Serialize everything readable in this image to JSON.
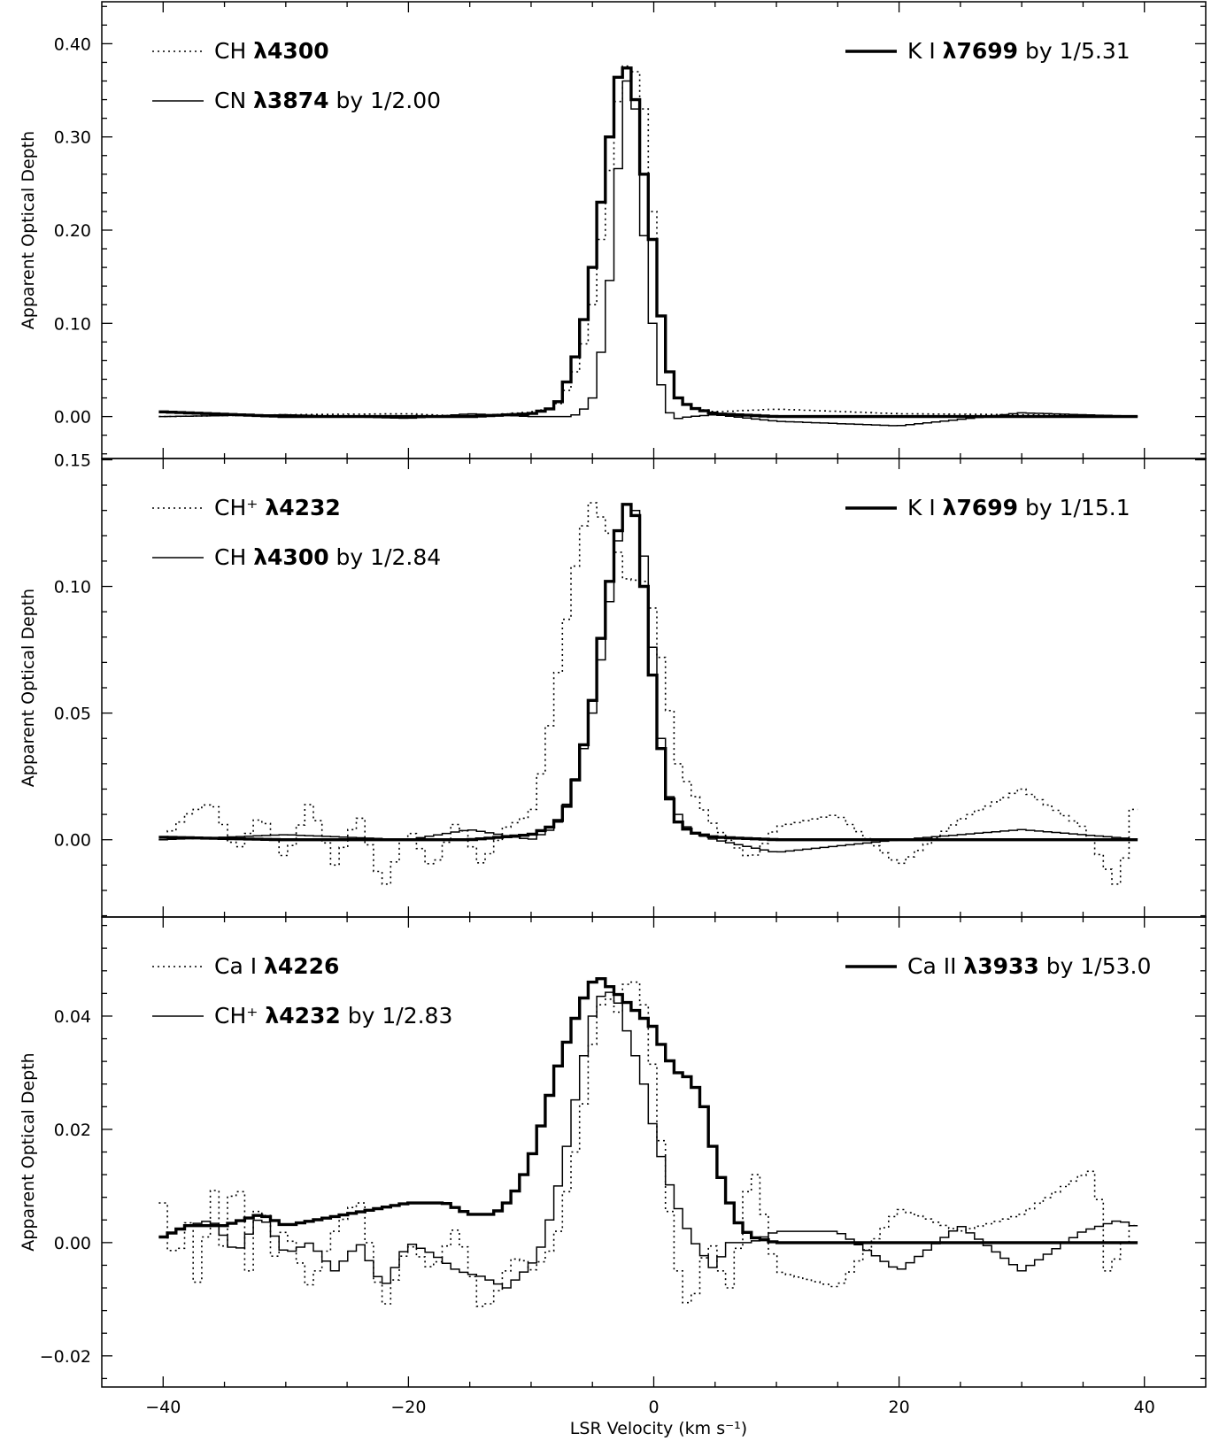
{
  "chart_data": {
    "type": "line",
    "xlabel": "LSR Velocity (km s⁻¹)",
    "xlim": [
      -45,
      45
    ],
    "xticks": [
      -40,
      -20,
      0,
      20,
      40
    ],
    "xticklabels": [
      "−40",
      "−20",
      "0",
      "20",
      "40"
    ],
    "panels": [
      {
        "ylabel": "Apparent Optical Depth",
        "ylim": [
          -0.045,
          0.445
        ],
        "yticks": [
          0.0,
          0.1,
          0.2,
          0.3,
          0.4
        ],
        "yticklabels": [
          "0.00",
          "0.10",
          "0.20",
          "0.30",
          "0.40"
        ],
        "series": [
          {
            "name": "CH λ4300",
            "style": "dotted",
            "label_species": "CH",
            "label_lambda": "λ4300",
            "label_scale": "",
            "x": [
              -40,
              -30,
              -20,
              -15,
              -10,
              -8,
              -7,
              -6,
              -5,
              -4,
              -3,
              -2.5,
              -2,
              -1.5,
              -1,
              -0.5,
              0,
              0.5,
              1,
              2,
              3,
              5,
              10,
              20,
              30,
              40
            ],
            "y": [
              0.0,
              0.002,
              0.003,
              0.0,
              0.005,
              0.01,
              0.03,
              0.06,
              0.12,
              0.22,
              0.33,
              0.37,
              0.38,
              0.37,
              0.35,
              0.3,
              0.2,
              0.12,
              0.06,
              0.02,
              0.01,
              0.005,
              0.008,
              0.003,
              0.002,
              0.0
            ]
          },
          {
            "name": "CN λ3874 by 1/2.00",
            "style": "thin",
            "label_species": "CN",
            "label_lambda": "λ3874",
            "label_scale": "by 1/2.00",
            "x": [
              -40,
              -30,
              -20,
              -15,
              -10,
              -7,
              -6,
              -5,
              -4,
              -3.5,
              -3,
              -2.5,
              -2,
              -1.5,
              -1,
              -0.5,
              0,
              0.5,
              1,
              1.5,
              2,
              3,
              5,
              10,
              20,
              30,
              40
            ],
            "y": [
              0.0,
              0.002,
              -0.002,
              0.003,
              0.0,
              0.0,
              0.003,
              0.02,
              0.09,
              0.16,
              0.25,
              0.33,
              0.38,
              0.33,
              0.23,
              0.14,
              0.09,
              0.04,
              0.01,
              0.0,
              -0.002,
              0.0,
              0.002,
              -0.005,
              -0.01,
              0.004,
              0.0
            ]
          },
          {
            "name": "K I λ7699 by 1/5.31",
            "style": "thick",
            "label_species": "K I",
            "label_lambda": "λ7699",
            "label_scale": "by 1/5.31",
            "x": [
              -40,
              -30,
              -20,
              -15,
              -10,
              -8,
              -7,
              -6,
              -5,
              -4,
              -3,
              -2.5,
              -2,
              -1.5,
              -1,
              0,
              1,
              2,
              3,
              5,
              10,
              20,
              30,
              40
            ],
            "y": [
              0.005,
              0.0,
              0.0,
              0.0,
              0.003,
              0.01,
              0.04,
              0.08,
              0.16,
              0.26,
              0.36,
              0.38,
              0.37,
              0.34,
              0.28,
              0.18,
              0.06,
              0.02,
              0.01,
              0.003,
              0.0,
              0.0,
              0.0,
              0.0
            ]
          }
        ]
      },
      {
        "ylabel": "Apparent Optical Depth",
        "ylim": [
          -0.0305,
          0.1505
        ],
        "yticks": [
          0.0,
          0.05,
          0.1,
          0.15
        ],
        "yticklabels": [
          "0.00",
          "0.05",
          "0.10",
          "0.15"
        ],
        "series": [
          {
            "name": "CH⁺ λ4232",
            "style": "dotted",
            "label_species": "CH⁺",
            "label_lambda": "λ4232",
            "label_scale": "",
            "x": [
              -40,
              -38,
              -36,
              -34,
              -32,
              -30,
              -28,
              -26,
              -24,
              -22,
              -20,
              -18,
              -16,
              -14,
              -12,
              -10,
              -9,
              -8,
              -7,
              -6,
              -5,
              -4,
              -3,
              -2,
              -1,
              0,
              1,
              2,
              3,
              5,
              8,
              10,
              15,
              20,
              25,
              30,
              35,
              38,
              39
            ],
            "y": [
              0.0,
              0.01,
              0.015,
              -0.005,
              0.01,
              -0.008,
              0.015,
              -0.01,
              0.01,
              -0.02,
              0.005,
              -0.012,
              0.008,
              -0.01,
              0.005,
              0.01,
              0.03,
              0.06,
              0.09,
              0.12,
              0.133,
              0.125,
              0.115,
              0.1,
              0.105,
              0.09,
              0.06,
              0.03,
              0.02,
              0.005,
              -0.008,
              0.005,
              0.01,
              -0.01,
              0.008,
              0.02,
              0.005,
              -0.02,
              0.012
            ]
          },
          {
            "name": "CH λ4300 by 1/2.84",
            "style": "thin",
            "label_species": "CH",
            "label_lambda": "λ4300",
            "label_scale": "by 1/2.84",
            "x": [
              -40,
              -30,
              -20,
              -15,
              -10,
              -8,
              -7,
              -6,
              -5,
              -4,
              -3,
              -2.5,
              -2,
              -1.5,
              -1,
              -0.5,
              0,
              0.5,
              1,
              2,
              3,
              5,
              10,
              20,
              30,
              40
            ],
            "y": [
              0.0,
              0.002,
              0.0,
              0.004,
              0.0,
              0.005,
              0.015,
              0.03,
              0.05,
              0.08,
              0.115,
              0.13,
              0.134,
              0.13,
              0.12,
              0.1,
              0.07,
              0.045,
              0.02,
              0.01,
              0.003,
              0.0,
              -0.005,
              0.0,
              0.004,
              0.0
            ]
          },
          {
            "name": "K I λ7699 by 1/15.1",
            "style": "thick",
            "label_species": "K I",
            "label_lambda": "λ7699",
            "label_scale": "by 1/15.1",
            "x": [
              -40,
              -30,
              -20,
              -15,
              -10,
              -8,
              -7,
              -6,
              -5,
              -4,
              -3,
              -2.5,
              -2,
              -1.5,
              -1,
              0,
              1,
              2,
              3,
              5,
              10,
              20,
              30,
              40
            ],
            "y": [
              0.001,
              0.0,
              0.0,
              0.0,
              0.002,
              0.006,
              0.014,
              0.03,
              0.055,
              0.09,
              0.12,
              0.13,
              0.134,
              0.128,
              0.11,
              0.06,
              0.02,
              0.007,
              0.003,
              0.001,
              0.0,
              0.0,
              0.0,
              0.0
            ]
          }
        ]
      },
      {
        "ylabel": "Apparent Optical Depth",
        "ylim": [
          -0.0255,
          0.0575
        ],
        "yticks": [
          -0.02,
          0.0,
          0.02,
          0.04
        ],
        "yticklabels": [
          "−0.02",
          "0.00",
          "0.02",
          "0.04"
        ],
        "series": [
          {
            "name": "Ca I λ4226",
            "style": "dotted",
            "label_species": "Ca I",
            "label_lambda": "λ4226",
            "label_scale": "",
            "x": [
              -40,
              -39,
              -38,
              -37,
              -36,
              -35,
              -34,
              -33,
              -32,
              -31,
              -30,
              -28,
              -26,
              -24,
              -22,
              -20,
              -18,
              -16,
              -14,
              -13,
              -12,
              -11,
              -10,
              -9,
              -8,
              -7,
              -6,
              -5,
              -4,
              -3,
              -2,
              -1,
              0,
              1,
              2,
              3,
              4,
              5,
              6,
              7,
              8,
              10,
              15,
              20,
              25,
              30,
              35,
              36,
              37,
              38,
              39
            ],
            "y": [
              0.007,
              -0.005,
              0.005,
              -0.01,
              0.012,
              -0.002,
              0.015,
              -0.005,
              0.01,
              -0.003,
              0.003,
              -0.008,
              0.002,
              0.008,
              -0.012,
              0.0,
              -0.005,
              0.003,
              -0.012,
              -0.01,
              -0.005,
              -0.002,
              -0.005,
              -0.003,
              0.0,
              0.01,
              0.02,
              0.035,
              0.045,
              0.04,
              0.047,
              0.045,
              0.03,
              0.01,
              -0.005,
              -0.013,
              -0.003,
              0.0,
              -0.01,
              0.0,
              0.015,
              -0.005,
              -0.008,
              0.006,
              0.002,
              0.005,
              0.012,
              0.013,
              -0.005,
              -0.002,
              0.003
            ]
          },
          {
            "name": "CH⁺ λ4232 by 1/2.83",
            "style": "thin",
            "label_species": "CH⁺",
            "label_lambda": "λ4232",
            "label_scale": "by 1/2.83",
            "x": [
              -40,
              -38,
              -36,
              -34,
              -32,
              -30,
              -28,
              -26,
              -24,
              -22,
              -20,
              -18,
              -16,
              -14,
              -12,
              -10,
              -9,
              -8,
              -7,
              -6,
              -5,
              -4,
              -3,
              -2,
              -1,
              0,
              1,
              2,
              3,
              4,
              5,
              6,
              8,
              10,
              15,
              20,
              25,
              30,
              35,
              38,
              39
            ],
            "y": [
              0.001,
              0.003,
              0.004,
              -0.002,
              0.005,
              -0.002,
              0.0,
              -0.005,
              0.0,
              -0.008,
              0.0,
              -0.002,
              -0.005,
              -0.006,
              -0.008,
              -0.004,
              0.0,
              0.008,
              0.018,
              0.03,
              0.04,
              0.045,
              0.043,
              0.036,
              0.03,
              0.02,
              0.012,
              0.006,
              0.001,
              -0.002,
              -0.005,
              0.0,
              0.0,
              0.002,
              0.002,
              -0.005,
              0.003,
              -0.005,
              0.002,
              0.004,
              0.003
            ]
          },
          {
            "name": "Ca II λ3933 by 1/53.0",
            "style": "thick",
            "label_species": "Ca II",
            "label_lambda": "λ3933",
            "label_scale": "by 1/53.0",
            "x": [
              -40,
              -38,
              -35,
              -32,
              -30,
              -25,
              -20,
              -17,
              -15,
              -13,
              -12,
              -11,
              -10,
              -9,
              -8,
              -7,
              -6,
              -5,
              -4.5,
              -4,
              -3,
              -2,
              -1,
              0,
              1,
              2,
              3,
              4,
              5,
              6,
              7,
              8,
              10,
              15,
              20,
              25,
              30,
              35,
              40
            ],
            "y": [
              0.001,
              0.003,
              0.003,
              0.005,
              0.003,
              0.005,
              0.007,
              0.007,
              0.005,
              0.005,
              0.007,
              0.01,
              0.015,
              0.022,
              0.03,
              0.036,
              0.042,
              0.046,
              0.047,
              0.046,
              0.044,
              0.042,
              0.04,
              0.038,
              0.033,
              0.03,
              0.029,
              0.025,
              0.015,
              0.008,
              0.003,
              0.001,
              0.0,
              0.0,
              0.0,
              0.0,
              0.0,
              0.0,
              0.0
            ]
          }
        ]
      }
    ]
  }
}
